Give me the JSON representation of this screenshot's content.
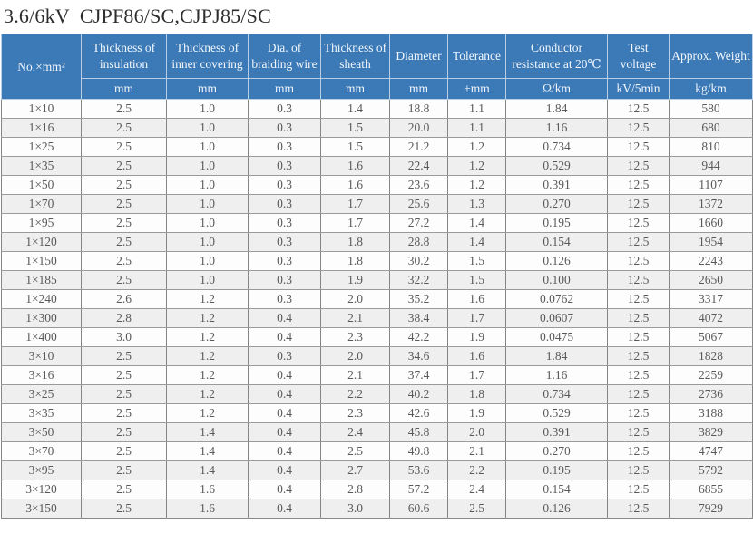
{
  "page": {
    "title": "3.6/6kV  CJPF86/SC,CJPJ85/SC"
  },
  "colors": {
    "header_bg": "#3b7ab7",
    "header_text": "#f2f6fb",
    "header_divider": "#b9cfe8",
    "row_bg": "#fdfdfd",
    "row_alt_bg": "#efefef",
    "data_text": "#595959",
    "grid_line": "#9a9a9a",
    "title_text": "#2e2e2e"
  },
  "table": {
    "columns": [
      {
        "label": "No.×mm²",
        "unit": ""
      },
      {
        "label": "Thickness of insulation",
        "unit": "mm"
      },
      {
        "label": "Thickness of inner covering",
        "unit": "mm"
      },
      {
        "label": "Dia. of braiding wire",
        "unit": "mm"
      },
      {
        "label": "Thickness of sheath",
        "unit": "mm"
      },
      {
        "label": "Diameter",
        "unit": "mm"
      },
      {
        "label": "Tolerance",
        "unit": "±mm"
      },
      {
        "label": "Conductor resistance at 20℃",
        "unit": "Ω/km"
      },
      {
        "label": "Test voltage",
        "unit": "kV/5min"
      },
      {
        "label": "Approx. Weight",
        "unit": "kg/km"
      }
    ],
    "rows": [
      [
        "1×10",
        "2.5",
        "1.0",
        "0.3",
        "1.4",
        "18.8",
        "1.1",
        "1.84",
        "12.5",
        "580"
      ],
      [
        "1×16",
        "2.5",
        "1.0",
        "0.3",
        "1.5",
        "20.0",
        "1.1",
        "1.16",
        "12.5",
        "680"
      ],
      [
        "1×25",
        "2.5",
        "1.0",
        "0.3",
        "1.5",
        "21.2",
        "1.2",
        "0.734",
        "12.5",
        "810"
      ],
      [
        "1×35",
        "2.5",
        "1.0",
        "0.3",
        "1.6",
        "22.4",
        "1.2",
        "0.529",
        "12.5",
        "944"
      ],
      [
        "1×50",
        "2.5",
        "1.0",
        "0.3",
        "1.6",
        "23.6",
        "1.2",
        "0.391",
        "12.5",
        "1107"
      ],
      [
        "1×70",
        "2.5",
        "1.0",
        "0.3",
        "1.7",
        "25.6",
        "1.3",
        "0.270",
        "12.5",
        "1372"
      ],
      [
        "1×95",
        "2.5",
        "1.0",
        "0.3",
        "1.7",
        "27.2",
        "1.4",
        "0.195",
        "12.5",
        "1660"
      ],
      [
        "1×120",
        "2.5",
        "1.0",
        "0.3",
        "1.8",
        "28.8",
        "1.4",
        "0.154",
        "12.5",
        "1954"
      ],
      [
        "1×150",
        "2.5",
        "1.0",
        "0.3",
        "1.8",
        "30.2",
        "1.5",
        "0.126",
        "12.5",
        "2243"
      ],
      [
        "1×185",
        "2.5",
        "1.0",
        "0.3",
        "1.9",
        "32.2",
        "1.5",
        "0.100",
        "12.5",
        "2650"
      ],
      [
        "1×240",
        "2.6",
        "1.2",
        "0.3",
        "2.0",
        "35.2",
        "1.6",
        "0.0762",
        "12.5",
        "3317"
      ],
      [
        "1×300",
        "2.8",
        "1.2",
        "0.4",
        "2.1",
        "38.4",
        "1.7",
        "0.0607",
        "12.5",
        "4072"
      ],
      [
        "1×400",
        "3.0",
        "1.2",
        "0.4",
        "2.3",
        "42.2",
        "1.9",
        "0.0475",
        "12.5",
        "5067"
      ],
      [
        "3×10",
        "2.5",
        "1.2",
        "0.3",
        "2.0",
        "34.6",
        "1.6",
        "1.84",
        "12.5",
        "1828"
      ],
      [
        "3×16",
        "2.5",
        "1.2",
        "0.4",
        "2.1",
        "37.4",
        "1.7",
        "1.16",
        "12.5",
        "2259"
      ],
      [
        "3×25",
        "2.5",
        "1.2",
        "0.4",
        "2.2",
        "40.2",
        "1.8",
        "0.734",
        "12.5",
        "2736"
      ],
      [
        "3×35",
        "2.5",
        "1.2",
        "0.4",
        "2.3",
        "42.6",
        "1.9",
        "0.529",
        "12.5",
        "3188"
      ],
      [
        "3×50",
        "2.5",
        "1.4",
        "0.4",
        "2.4",
        "45.8",
        "2.0",
        "0.391",
        "12.5",
        "3829"
      ],
      [
        "3×70",
        "2.5",
        "1.4",
        "0.4",
        "2.5",
        "49.8",
        "2.1",
        "0.270",
        "12.5",
        "4747"
      ],
      [
        "3×95",
        "2.5",
        "1.4",
        "0.4",
        "2.7",
        "53.6",
        "2.2",
        "0.195",
        "12.5",
        "5792"
      ],
      [
        "3×120",
        "2.5",
        "1.6",
        "0.4",
        "2.8",
        "57.2",
        "2.4",
        "0.154",
        "12.5",
        "6855"
      ],
      [
        "3×150",
        "2.5",
        "1.6",
        "0.4",
        "3.0",
        "60.6",
        "2.5",
        "0.126",
        "12.5",
        "7929"
      ]
    ]
  }
}
